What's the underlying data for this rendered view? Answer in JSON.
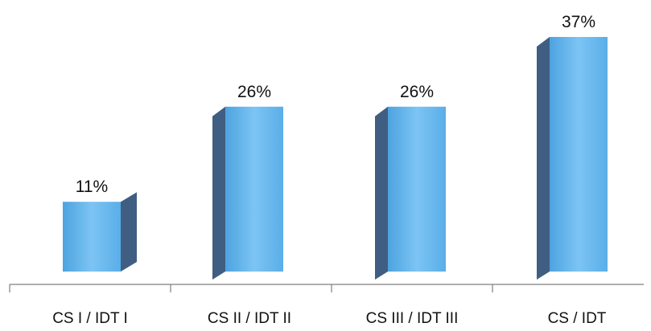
{
  "chart_data": {
    "type": "bar",
    "categories": [
      "CS I / IDT I",
      "CS II / IDT II",
      "CS III / IDT III",
      "CS / IDT"
    ],
    "values": [
      11,
      26,
      26,
      37
    ],
    "data_labels": [
      "11%",
      "26%",
      "26%",
      "37%"
    ],
    "unit": "%",
    "style": "3d",
    "grid": false,
    "legend": "none",
    "ylim": [
      0,
      40
    ],
    "colors": {
      "bar_front": "#5aaee8",
      "bar_front_light": "#7cc4f4",
      "bar_side": "#3f5e82",
      "bar_top": "#8fc8ee",
      "axis": "#7f7f7f"
    }
  }
}
